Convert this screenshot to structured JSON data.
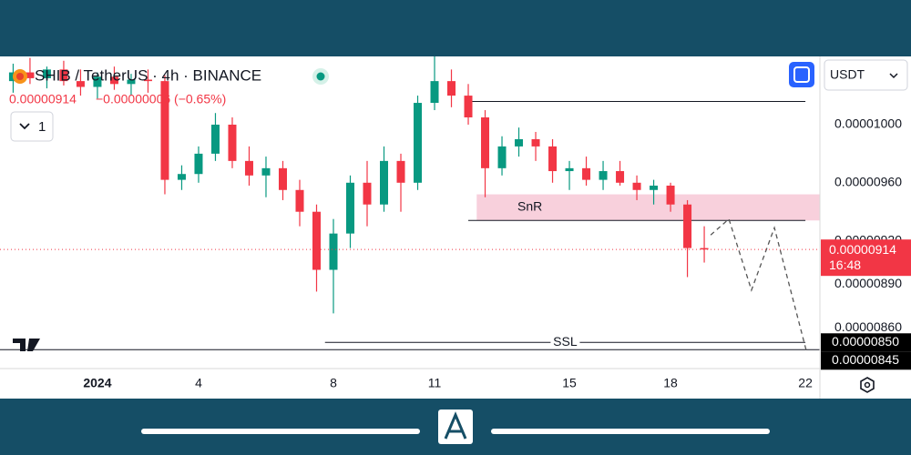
{
  "header": {
    "title": "SHIB / TetherUS · 4h · BINANCE",
    "price": "0.00000914",
    "change": "−0.00000006 (−0.65%)",
    "toggle": "1",
    "currency": "USDT"
  },
  "chart_data": {
    "type": "candlestick",
    "x": [
      -1.5,
      -1,
      -0.5,
      0,
      0.5,
      1,
      1.5,
      2,
      2.5,
      3,
      3.5,
      4,
      4.5,
      5,
      5.5,
      6,
      6.5,
      7,
      7.5,
      8,
      8.5,
      9,
      9.5,
      10,
      10.5,
      11,
      11.5,
      12,
      12.5,
      13,
      13.5,
      14,
      14.5,
      15,
      15.5,
      16,
      16.5,
      17,
      17.5,
      18,
      18.5,
      19
    ],
    "open": [
      1.03e-05,
      1.036e-05,
      1.032e-05,
      1.038e-05,
      1.03e-05,
      1.026e-05,
      1.033e-05,
      1.028e-05,
      1.031e-05,
      1.03e-05,
      9.62e-06,
      9.66e-06,
      9.8e-06,
      1e-05,
      9.75e-06,
      9.65e-06,
      9.7e-06,
      9.55e-06,
      9.4e-06,
      9e-06,
      9.25e-06,
      9.6e-06,
      9.45e-06,
      9.75e-06,
      9.6e-06,
      1.015e-05,
      1.03e-05,
      1.02e-05,
      1.005e-05,
      9.7e-06,
      9.85e-06,
      9.9e-06,
      9.85e-06,
      9.68e-06,
      9.7e-06,
      9.62e-06,
      9.68e-06,
      9.6e-06,
      9.55e-06,
      9.58e-06,
      9.45e-06,
      9.15e-06
    ],
    "high": [
      1.042e-05,
      1.046e-05,
      1.04e-05,
      1.044e-05,
      1.038e-05,
      1.036e-05,
      1.04e-05,
      1.035e-05,
      1.038e-05,
      1.034e-05,
      9.72e-06,
      9.85e-06,
      1.008e-05,
      1.005e-05,
      9.85e-06,
      9.78e-06,
      9.75e-06,
      9.62e-06,
      9.45e-06,
      9.35e-06,
      9.65e-06,
      9.75e-06,
      9.85e-06,
      9.8e-06,
      1.02e-05,
      1.047e-05,
      1.038e-05,
      1.028e-05,
      1.01e-05,
      9.92e-06,
      9.98e-06,
      9.95e-06,
      9.9e-06,
      9.75e-06,
      9.78e-06,
      9.75e-06,
      9.75e-06,
      9.65e-06,
      9.62e-06,
      9.6e-06,
      9.48e-06,
      9.3e-06
    ],
    "low": [
      1.022e-05,
      1.028e-05,
      1.025e-05,
      1.027e-05,
      1.02e-05,
      1.018e-05,
      1.024e-05,
      1.02e-05,
      1.022e-05,
      9.52e-06,
      9.55e-06,
      9.6e-06,
      9.75e-06,
      9.7e-06,
      9.58e-06,
      9.5e-06,
      9.48e-06,
      9.3e-06,
      8.85e-06,
      8.7e-06,
      9.15e-06,
      9.3e-06,
      9.4e-06,
      9.4e-06,
      9.55e-06,
      1.01e-05,
      1.012e-05,
      1e-05,
      9.5e-06,
      9.65e-06,
      9.78e-06,
      9.75e-06,
      9.6e-06,
      9.55e-06,
      9.58e-06,
      9.55e-06,
      9.58e-06,
      9.48e-06,
      9.45e-06,
      9.4e-06,
      8.95e-06,
      9.05e-06
    ],
    "close": [
      1.036e-05,
      1.032e-05,
      1.038e-05,
      1.03e-05,
      1.026e-05,
      1.033e-05,
      1.028e-05,
      1.031e-05,
      1.03e-05,
      9.62e-06,
      9.66e-06,
      9.8e-06,
      1e-05,
      9.75e-06,
      9.65e-06,
      9.7e-06,
      9.55e-06,
      9.4e-06,
      9e-06,
      9.25e-06,
      9.6e-06,
      9.45e-06,
      9.75e-06,
      9.6e-06,
      1.015e-05,
      1.03e-05,
      1.02e-05,
      1.005e-05,
      9.7e-06,
      9.85e-06,
      9.9e-06,
      9.85e-06,
      9.68e-06,
      9.7e-06,
      9.62e-06,
      9.68e-06,
      9.6e-06,
      9.55e-06,
      9.58e-06,
      9.45e-06,
      9.15e-06,
      9.14e-06
    ],
    "up_color": "#089981",
    "down_color": "#f23645",
    "xlim": [
      -1.89,
      22.43
    ],
    "ylim": [
      8.32e-06,
      1.047e-05
    ],
    "xticks": [
      {
        "value": 1,
        "label": "2024"
      },
      4,
      8,
      11,
      15,
      18,
      22
    ],
    "yticks": [
      {
        "value": 1e-05,
        "label": "0.00001000"
      },
      {
        "value": 9.6e-06,
        "label": "0.00000960"
      },
      {
        "value": 9.2e-06,
        "label": "0.00000920"
      },
      {
        "value": 8.9e-06,
        "label": "0.00000890"
      },
      {
        "value": 8.6e-06,
        "label": "0.00000860"
      }
    ],
    "lines": [
      {
        "value": 1.016e-05,
        "x": [
          12,
          22
        ]
      },
      {
        "value": 9.34e-06,
        "x": [
          12,
          22
        ]
      },
      {
        "value": 8.5e-06,
        "x": [
          7.75,
          22
        ],
        "label": "SSL"
      },
      {
        "value": 8.45e-06
      }
    ],
    "zone": {
      "label": "SnR",
      "low": 9.34e-06,
      "high": 9.52e-06,
      "x": [
        12.25,
        22.43
      ],
      "color": "#f8d0dc"
    },
    "projection": {
      "x": [
        19.19,
        19.73,
        20.4,
        21.08,
        22.03
      ],
      "values": [
        9.24e-06,
        9.35e-06,
        8.86e-06,
        9.29e-06,
        8.44e-06
      ]
    },
    "price_tag": {
      "value": 9.14e-06,
      "label": "0.00000914",
      "time": "16:48"
    },
    "axis_labels": [
      {
        "value": 8.5e-06,
        "label": "0.00000850"
      },
      {
        "value": 8.45e-06,
        "label": "0.00000845"
      }
    ]
  }
}
